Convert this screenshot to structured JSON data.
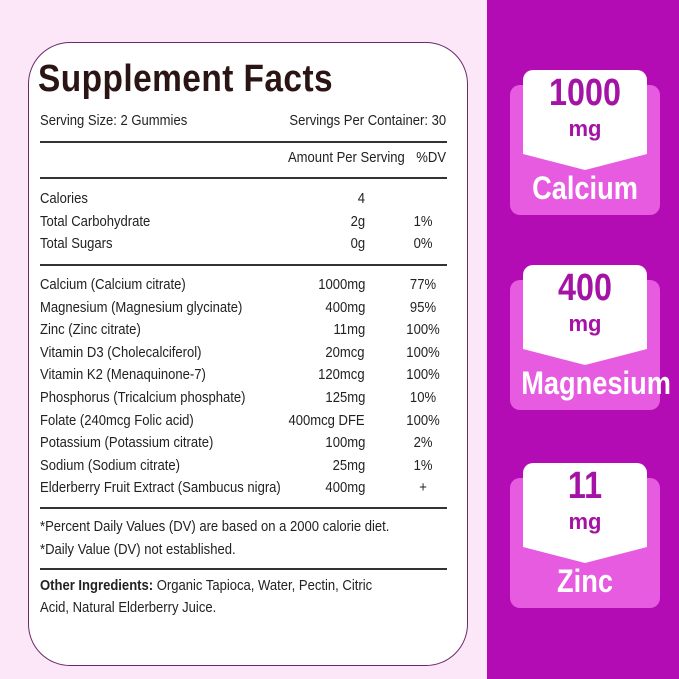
{
  "facts": {
    "title": "Supplement Facts",
    "serving_size": "Serving Size: 2 Gummies",
    "servings_per_container": "Servings Per Container: 30",
    "amount_header": "Amount Per Serving",
    "dv_header": "%DV",
    "basic": [
      {
        "name": "Calories",
        "amount": "4",
        "dv": ""
      },
      {
        "name": "Total Carbohydrate",
        "amount": "2g",
        "dv": "1%"
      },
      {
        "name": "Total Sugars",
        "amount": "0g",
        "dv": "0%"
      }
    ],
    "nutrients": [
      {
        "name": "Calcium (Calcium citrate)",
        "amount": "1000mg",
        "dv": "77%"
      },
      {
        "name": "Magnesium (Magnesium glycinate)",
        "amount": "400mg",
        "dv": "95%"
      },
      {
        "name": "Zinc (Zinc citrate)",
        "amount": "11mg",
        "dv": "100%"
      },
      {
        "name": "Vitamin D3 (Cholecalciferol)",
        "amount": "20mcg",
        "dv": "100%"
      },
      {
        "name": "Vitamin K2 (Menaquinone-7)",
        "amount": "120mcg",
        "dv": "100%"
      },
      {
        "name": "Phosphorus (Tricalcium phosphate)",
        "amount": "125mg",
        "dv": "10%"
      },
      {
        "name": "Folate (240mcg Folic acid)",
        "amount": "400mcg DFE",
        "dv": "100%"
      },
      {
        "name": "Potassium (Potassium citrate)",
        "amount": "100mg",
        "dv": "2%"
      },
      {
        "name": "Sodium (Sodium citrate)",
        "amount": "25mg",
        "dv": "1%"
      },
      {
        "name": "Elderberry Fruit Extract (Sambucus nigra)",
        "amount": "400mg",
        "dv": "+"
      }
    ],
    "footnote1": "*Percent Daily Values (DV) are based on a 2000 calorie diet.",
    "footnote2": "*Daily Value (DV) not established.",
    "other_label": "Other Ingredients:",
    "other_line1": " Organic Tapioca, Water, Pectin, Citric",
    "other_line2": "Acid, Natural Elderberry Juice."
  },
  "badges": [
    {
      "value": "1000",
      "unit": "mg",
      "name": "Calcium"
    },
    {
      "value": "400",
      "unit": "mg",
      "name": "Magnesium"
    },
    {
      "value": "11",
      "unit": "mg",
      "name": "Zinc"
    }
  ],
  "colors": {
    "panel": "#b30cb4",
    "badge": "#e65be0",
    "text_accent": "#a413a5",
    "background": "#fbe7f7"
  }
}
